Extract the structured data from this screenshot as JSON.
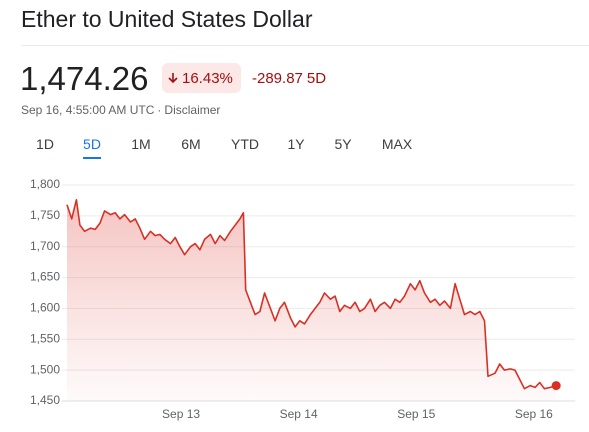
{
  "header": {
    "title": "Ether to United States Dollar",
    "price": "1,474.26",
    "change_percent": "16.43%",
    "change_value": "-289.87",
    "period": "5D",
    "timestamp": "Sep 16, 4:55:00 AM UTC",
    "separator": "·",
    "disclaimer": "Disclaimer"
  },
  "tabs": [
    "1D",
    "5D",
    "1M",
    "6M",
    "YTD",
    "1Y",
    "5Y",
    "MAX"
  ],
  "chart_data": {
    "type": "line",
    "color": "#d93025",
    "grid": true,
    "x": [
      0.03,
      0.07,
      0.11,
      0.14,
      0.18,
      0.23,
      0.27,
      0.31,
      0.35,
      0.4,
      0.44,
      0.48,
      0.52,
      0.57,
      0.61,
      0.65,
      0.69,
      0.74,
      0.78,
      0.82,
      0.86,
      0.91,
      0.95,
      0.99,
      1.03,
      1.08,
      1.12,
      1.16,
      1.2,
      1.25,
      1.29,
      1.33,
      1.37,
      1.42,
      1.46,
      1.5,
      1.53,
      1.55,
      1.59,
      1.63,
      1.67,
      1.71,
      1.76,
      1.8,
      1.84,
      1.88,
      1.93,
      1.97,
      2.01,
      2.05,
      2.1,
      2.14,
      2.18,
      2.22,
      2.27,
      2.31,
      2.35,
      2.39,
      2.44,
      2.48,
      2.52,
      2.56,
      2.61,
      2.65,
      2.69,
      2.73,
      2.78,
      2.82,
      2.86,
      2.9,
      2.95,
      2.99,
      3.03,
      3.07,
      3.12,
      3.16,
      3.2,
      3.24,
      3.29,
      3.33,
      3.37,
      3.41,
      3.46,
      3.5,
      3.54,
      3.58,
      3.61,
      3.67,
      3.71,
      3.75,
      3.8,
      3.84,
      3.88,
      3.92,
      3.97,
      4.01,
      4.05,
      4.09,
      4.14,
      4.19
    ],
    "values": [
      1768,
      1745,
      1776,
      1735,
      1725,
      1730,
      1728,
      1738,
      1758,
      1752,
      1755,
      1745,
      1752,
      1740,
      1745,
      1730,
      1712,
      1725,
      1718,
      1720,
      1712,
      1705,
      1715,
      1700,
      1687,
      1700,
      1705,
      1695,
      1712,
      1720,
      1705,
      1718,
      1710,
      1725,
      1735,
      1745,
      1755,
      1630,
      1610,
      1590,
      1595,
      1625,
      1600,
      1580,
      1600,
      1610,
      1585,
      1570,
      1580,
      1575,
      1590,
      1600,
      1610,
      1625,
      1615,
      1620,
      1595,
      1605,
      1600,
      1610,
      1595,
      1600,
      1615,
      1595,
      1605,
      1610,
      1600,
      1615,
      1610,
      1620,
      1640,
      1630,
      1645,
      1625,
      1610,
      1615,
      1605,
      1612,
      1600,
      1640,
      1615,
      1590,
      1595,
      1590,
      1595,
      1580,
      1490,
      1495,
      1510,
      1500,
      1502,
      1500,
      1485,
      1470,
      1475,
      1472,
      1480,
      1470,
      1472,
      1475
    ],
    "xlim": [
      0.03,
      4.35
    ],
    "xticks": [
      {
        "value": 1,
        "label": "Sep 13"
      },
      {
        "value": 2,
        "label": "Sep 14"
      },
      {
        "value": 3,
        "label": "Sep 15"
      },
      {
        "value": 4,
        "label": "Sep 16"
      }
    ],
    "ylim": [
      1450,
      1800
    ],
    "yticks": [
      {
        "value": 1450,
        "label": "1,450"
      },
      {
        "value": 1500,
        "label": "1,500"
      },
      {
        "value": 1550,
        "label": "1,550"
      },
      {
        "value": 1600,
        "label": "1,600"
      },
      {
        "value": 1650,
        "label": "1,650"
      },
      {
        "value": 1700,
        "label": "1,700"
      },
      {
        "value": 1750,
        "label": "1,750"
      },
      {
        "value": 1800,
        "label": "1,800"
      }
    ]
  }
}
